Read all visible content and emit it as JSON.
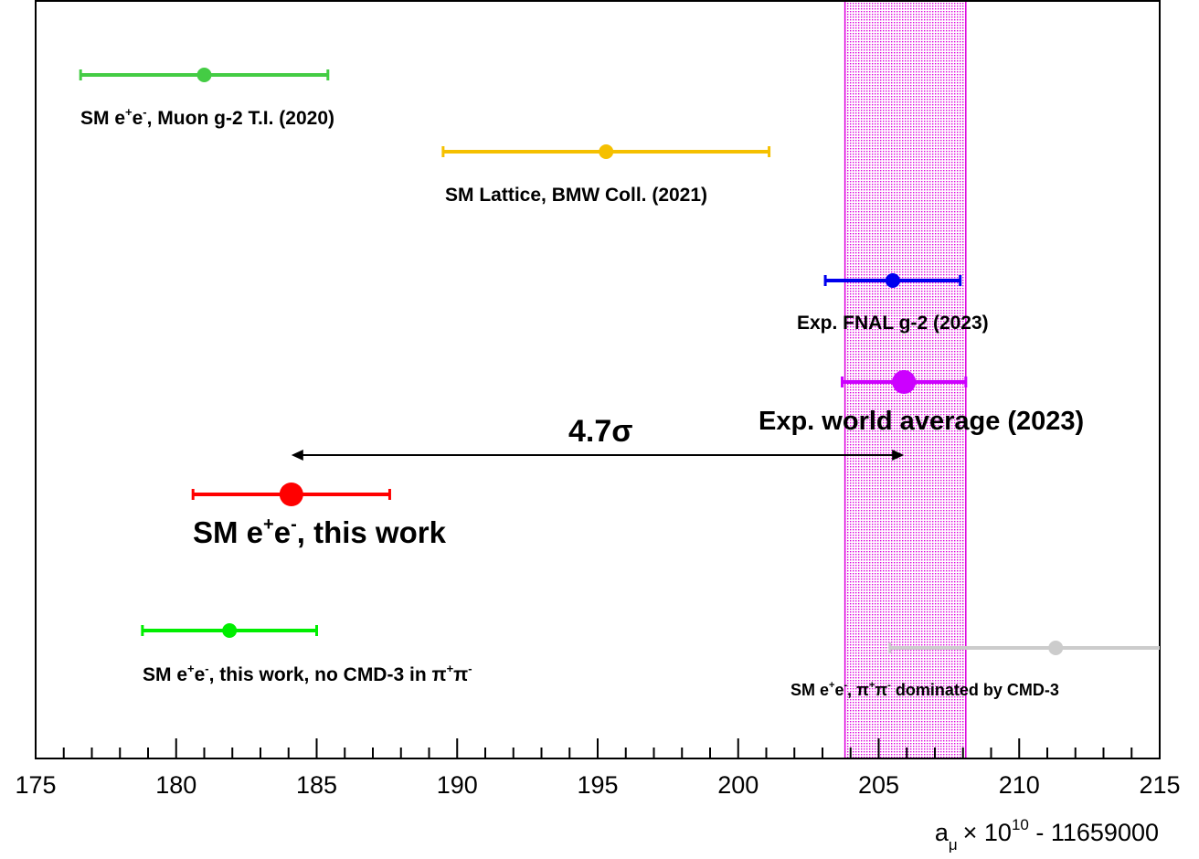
{
  "chart_data": {
    "type": "scatter",
    "title": "",
    "xlabel": "a_μ × 10^10 - 11659000",
    "xlabel_parts": {
      "symbol": "a",
      "sub": "μ",
      "times": "× 10",
      "sup": "10",
      "offset": " - 11659000"
    },
    "xlim": [
      175,
      215
    ],
    "xticks": [
      175,
      180,
      185,
      190,
      195,
      200,
      205,
      210,
      215
    ],
    "grid": false,
    "band": {
      "name": "Exp. world average (2023)",
      "range": [
        203.8,
        208.1
      ],
      "color": "#dd00dd"
    },
    "series": [
      {
        "id": "ee-muon-g2-ti",
        "label_parts": [
          {
            "t": "SM e"
          },
          {
            "sup": "+"
          },
          {
            "t": "e"
          },
          {
            "sup": "-"
          },
          {
            "t": ", Muon g-2 T.I. (2020)"
          }
        ],
        "x": 181.0,
        "xerr": [
          4.4,
          4.4
        ],
        "color": "#44cc44",
        "marker": "small",
        "row": 1
      },
      {
        "id": "lattice-bmw",
        "label_parts": [
          {
            "t": "SM Lattice, BMW Coll. (2021)"
          }
        ],
        "x": 195.3,
        "xerr": [
          5.8,
          5.8
        ],
        "color": "#f5c000",
        "marker": "small",
        "row": 2
      },
      {
        "id": "fnal-g2",
        "label_parts": [
          {
            "t": "Exp. FNAL g-2 (2023)"
          }
        ],
        "x": 205.5,
        "xerr": [
          2.4,
          2.4
        ],
        "color": "#0000ee",
        "marker": "small",
        "row": 3
      },
      {
        "id": "world-average",
        "label_parts": [
          {
            "t": "Exp. world average (2023)"
          }
        ],
        "x": 205.9,
        "xerr": [
          2.2,
          2.2
        ],
        "color": "#cc00ff",
        "marker": "large",
        "row": 4
      },
      {
        "id": "ee-this-work",
        "label_parts": [
          {
            "t": "SM e"
          },
          {
            "sup": "+"
          },
          {
            "t": "e"
          },
          {
            "sup": "-"
          },
          {
            "t": ", this work"
          }
        ],
        "x": 184.1,
        "xerr": [
          3.5,
          3.5
        ],
        "color": "#ff0000",
        "marker": "large",
        "row": 5
      },
      {
        "id": "ee-no-cmd3",
        "label_parts": [
          {
            "t": "SM e"
          },
          {
            "sup": "+"
          },
          {
            "t": "e"
          },
          {
            "sup": "-"
          },
          {
            "t": ", this work, no CMD-3 in  "
          },
          {
            "t": "π"
          },
          {
            "sup": "+"
          },
          {
            "t": "π"
          },
          {
            "sup": "-"
          }
        ],
        "x": 181.9,
        "xerr": [
          3.1,
          3.1
        ],
        "color": "#00ee00",
        "marker": "small",
        "row": 6
      },
      {
        "id": "ee-cmd3-dominated",
        "label_parts": [
          {
            "t": "SM e"
          },
          {
            "sup": "+"
          },
          {
            "t": "e"
          },
          {
            "sup": "-"
          },
          {
            "t": ", "
          },
          {
            "t": "π"
          },
          {
            "sup": "+"
          },
          {
            "t": "π"
          },
          {
            "sup": "-"
          },
          {
            "t": " dominated by CMD-3"
          }
        ],
        "x": 211.3,
        "xerr": [
          5.9,
          5.9
        ],
        "color": "#cccccc",
        "marker": "small",
        "row": 7
      }
    ],
    "annotations": [
      {
        "id": "tension",
        "text": "4.7σ",
        "from": 184.1,
        "to": 205.9
      }
    ]
  }
}
